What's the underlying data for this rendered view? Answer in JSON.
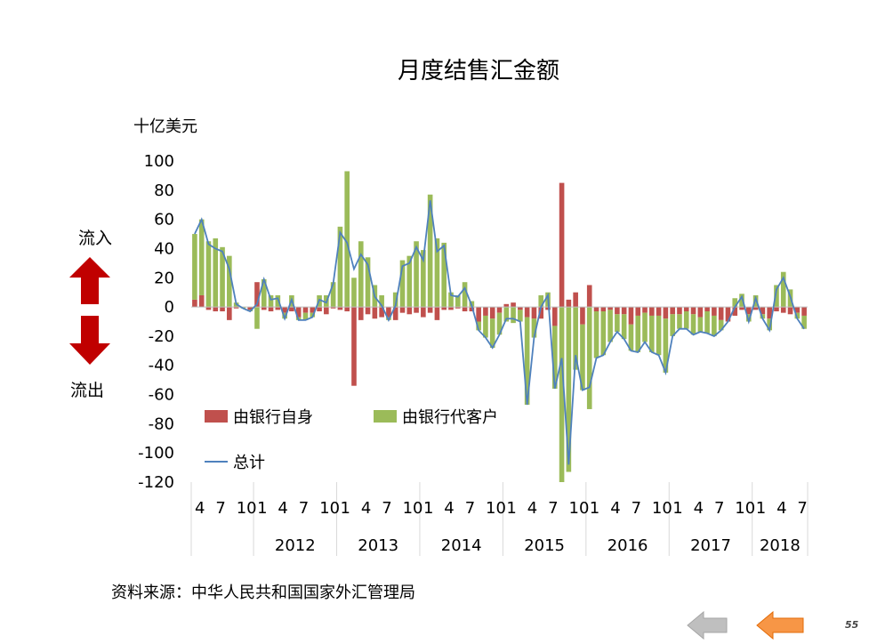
{
  "slide": {
    "title": "月度结售汇金额",
    "unit": "十亿美元",
    "inflow_label": "流入",
    "outflow_label": "流出",
    "source": "资料来源：中华人民共和国国家外汇管理局",
    "page_number": "55",
    "nav": {
      "back_icon": "left-arrow-icon-gray",
      "forward_icon": "left-arrow-icon-orange"
    },
    "colors": {
      "bank_own": "#C0504D",
      "bank_clients": "#9BBB59",
      "total": "#4F81BD",
      "inflow_arrow": "#C00000",
      "outflow_arrow": "#C00000",
      "nav_back": "#BFBFBF",
      "nav_forward": "#F79646"
    }
  },
  "chart_data": {
    "type": "bar",
    "stacked": true,
    "title": "月度结售汇金额",
    "ylabel": "十亿美元",
    "ylim": [
      -120,
      100
    ],
    "yticks": [
      100,
      80,
      60,
      40,
      20,
      0,
      -20,
      -40,
      -60,
      -80,
      -100,
      -120
    ],
    "legend_position": "bottom-left",
    "month_ticks": [
      "4",
      "7",
      "10",
      "1",
      "4",
      "7",
      "10",
      "1",
      "4",
      "7",
      "10",
      "1",
      "4",
      "7",
      "10",
      "1",
      "4",
      "7",
      "10",
      "1",
      "4",
      "7",
      "10",
      "1",
      "4",
      "7",
      "10",
      "1",
      "4",
      "7"
    ],
    "years": [
      "2012",
      "2013",
      "2014",
      "2015",
      "2016",
      "2017",
      "2018"
    ],
    "categories": [
      "2011-04",
      "2011-05",
      "2011-06",
      "2011-07",
      "2011-08",
      "2011-09",
      "2011-10",
      "2011-11",
      "2011-12",
      "2012-01",
      "2012-02",
      "2012-03",
      "2012-04",
      "2012-05",
      "2012-06",
      "2012-07",
      "2012-08",
      "2012-09",
      "2012-10",
      "2012-11",
      "2012-12",
      "2013-01",
      "2013-02",
      "2013-03",
      "2013-04",
      "2013-05",
      "2013-06",
      "2013-07",
      "2013-08",
      "2013-09",
      "2013-10",
      "2013-11",
      "2013-12",
      "2014-01",
      "2014-02",
      "2014-03",
      "2014-04",
      "2014-05",
      "2014-06",
      "2014-07",
      "2014-08",
      "2014-09",
      "2014-10",
      "2014-11",
      "2014-12",
      "2015-01",
      "2015-02",
      "2015-03",
      "2015-04",
      "2015-05",
      "2015-06",
      "2015-07",
      "2015-08",
      "2015-09",
      "2015-10",
      "2015-11",
      "2015-12",
      "2016-01",
      "2016-02",
      "2016-03",
      "2016-04",
      "2016-05",
      "2016-06",
      "2016-07",
      "2016-08",
      "2016-09",
      "2016-10",
      "2016-11",
      "2016-12",
      "2017-01",
      "2017-02",
      "2017-03",
      "2017-04",
      "2017-05",
      "2017-06",
      "2017-07",
      "2017-08",
      "2017-09",
      "2017-10",
      "2017-11",
      "2017-12",
      "2018-01",
      "2018-02",
      "2018-03",
      "2018-04",
      "2018-05",
      "2018-06",
      "2018-07",
      "2018-08"
    ],
    "series": [
      {
        "name": "由银行自身",
        "kind": "bar",
        "values": [
          5,
          8,
          -2,
          -3,
          -3,
          -9,
          -1,
          0,
          -2,
          17,
          -2,
          -3,
          -2,
          -4,
          -3,
          -7,
          -4,
          -4,
          -3,
          -5,
          -1,
          -2,
          -3,
          -54,
          -9,
          -5,
          -8,
          -7,
          -7,
          -9,
          -4,
          -5,
          -4,
          -7,
          -4,
          -9,
          -2,
          -2,
          -1,
          -3,
          -3,
          -10,
          -6,
          -8,
          -4,
          2,
          3,
          -2,
          -7,
          -8,
          -8,
          -2,
          -13,
          85,
          5,
          10,
          -12,
          15,
          -3,
          -3,
          -2,
          -5,
          -5,
          -12,
          -6,
          -4,
          -6,
          -6,
          -8,
          -5,
          -5,
          -3,
          -5,
          -7,
          -3,
          -6,
          -9,
          -10,
          -6,
          -2,
          -5,
          -2,
          -5,
          -8,
          -3,
          -4,
          -5,
          -4,
          -6
        ]
      },
      {
        "name": "由银行代客户",
        "kind": "bar",
        "values": [
          45,
          52,
          45,
          47,
          41,
          35,
          3,
          -1,
          -1,
          -15,
          19,
          8,
          8,
          -4,
          8,
          -2,
          -5,
          -3,
          8,
          8,
          17,
          55,
          93,
          20,
          45,
          34,
          15,
          8,
          -2,
          10,
          32,
          35,
          45,
          39,
          77,
          47,
          44,
          10,
          8,
          17,
          4,
          -6,
          -15,
          -20,
          -15,
          -10,
          -11,
          -8,
          -60,
          -13,
          8,
          10,
          -43,
          -120,
          -113,
          -43,
          -45,
          -70,
          -32,
          -30,
          -22,
          -12,
          -17,
          -18,
          -25,
          -20,
          -25,
          -27,
          -37,
          -15,
          -10,
          -12,
          -14,
          -10,
          -15,
          -14,
          -7,
          0,
          6,
          9,
          -5,
          8,
          -3,
          -8,
          15,
          24,
          12,
          -4,
          -9
        ]
      },
      {
        "name": "总计",
        "kind": "line",
        "values": [
          50,
          60,
          43,
          40,
          38,
          26,
          2,
          -1,
          -3,
          2,
          19,
          5,
          6,
          -8,
          5,
          -9,
          -9,
          -7,
          5,
          3,
          16,
          51,
          44,
          26,
          36,
          29,
          7,
          1,
          -9,
          1,
          28,
          30,
          41,
          32,
          73,
          38,
          42,
          8,
          7,
          13,
          1,
          -16,
          -21,
          -28,
          -19,
          -8,
          -8,
          -10,
          -67,
          -21,
          0,
          8,
          -56,
          -35,
          -108,
          -33,
          -57,
          -55,
          -35,
          -33,
          -24,
          -17,
          -22,
          -30,
          -31,
          -24,
          -31,
          -33,
          -45,
          -20,
          -15,
          -15,
          -19,
          -17,
          -18,
          -20,
          -16,
          -10,
          0,
          7,
          -10,
          6,
          -8,
          -16,
          12,
          20,
          7,
          -8,
          -15
        ]
      }
    ]
  }
}
